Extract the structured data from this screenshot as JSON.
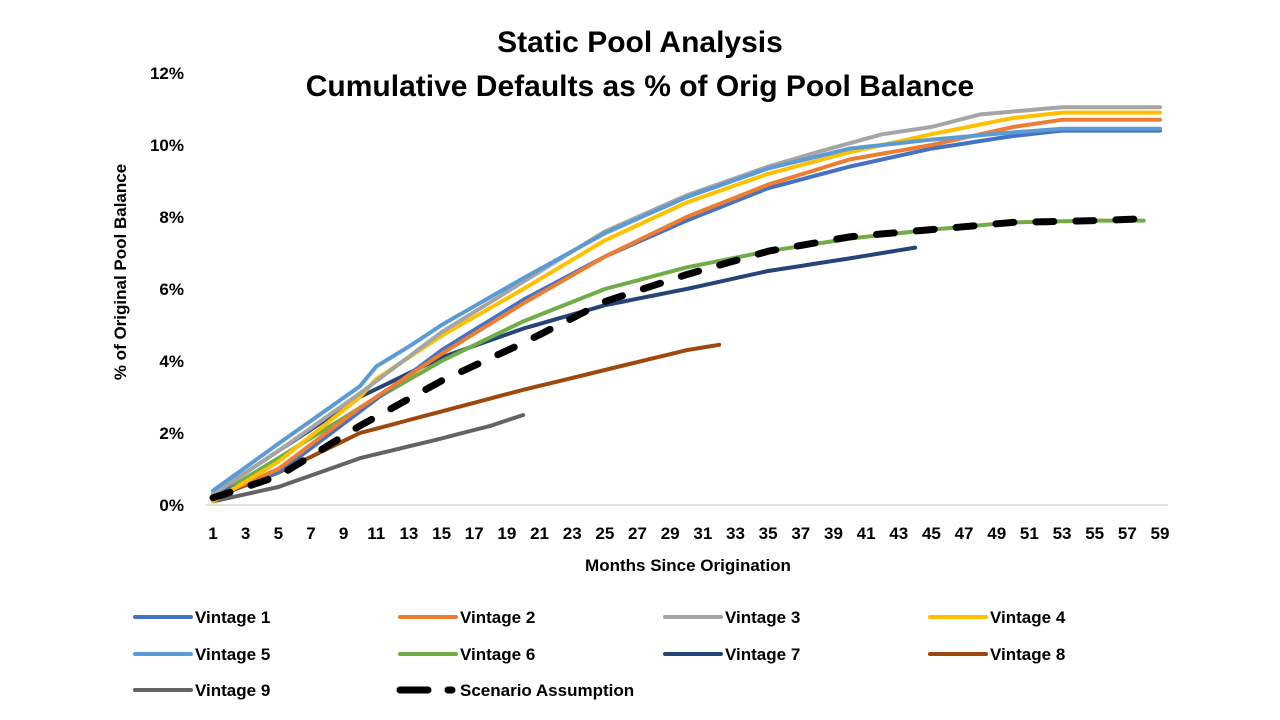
{
  "chart_data": {
    "type": "line",
    "title": [
      "Static Pool Analysis",
      "Cumulative Defaults as % of Orig Pool Balance"
    ],
    "xlabel": "Months Since Origination",
    "ylabel": "% of Original Pool Balance",
    "xlim": [
      1,
      59
    ],
    "ylim": [
      0,
      12
    ],
    "x_tick_labels": [
      "1",
      "3",
      "5",
      "7",
      "9",
      "11",
      "13",
      "15",
      "17",
      "19",
      "21",
      "23",
      "25",
      "27",
      "29",
      "31",
      "33",
      "35",
      "37",
      "39",
      "41",
      "43",
      "45",
      "47",
      "49",
      "51",
      "53",
      "55",
      "57",
      "59"
    ],
    "y_tick_labels": [
      "0%",
      "2%",
      "4%",
      "6%",
      "8%",
      "10%",
      "12%"
    ],
    "y_tick_values": [
      0,
      2,
      4,
      6,
      8,
      10,
      12
    ],
    "grid": false,
    "legend_position": "bottom",
    "series": [
      {
        "name": "Vintage 1",
        "color": "#4472C4",
        "dashed": false,
        "x": [
          1,
          5,
          10,
          15,
          20,
          25,
          30,
          35,
          40,
          45,
          50,
          53,
          59
        ],
        "y": [
          0.3,
          0.9,
          2.6,
          4.3,
          5.7,
          6.9,
          7.9,
          8.8,
          9.4,
          9.9,
          10.25,
          10.4,
          10.4
        ]
      },
      {
        "name": "Vintage 2",
        "color": "#ED7D31",
        "dashed": false,
        "x": [
          1,
          5,
          10,
          15,
          20,
          25,
          30,
          35,
          40,
          45,
          50,
          53,
          59
        ],
        "y": [
          0.2,
          1.0,
          2.7,
          4.2,
          5.6,
          6.9,
          8.0,
          8.9,
          9.6,
          10.0,
          10.5,
          10.7,
          10.7
        ]
      },
      {
        "name": "Vintage 3",
        "color": "#A5A5A5",
        "dashed": false,
        "x": [
          1,
          5,
          10,
          15,
          20,
          25,
          30,
          35,
          38,
          42,
          45,
          48,
          53,
          59
        ],
        "y": [
          0.3,
          1.5,
          3.1,
          4.8,
          6.2,
          7.6,
          8.6,
          9.4,
          9.8,
          10.3,
          10.5,
          10.85,
          11.05,
          11.05
        ]
      },
      {
        "name": "Vintage 4",
        "color": "#FFC000",
        "dashed": false,
        "x": [
          1,
          5,
          10,
          11,
          15,
          20,
          25,
          30,
          35,
          40,
          45,
          50,
          53,
          59
        ],
        "y": [
          0.1,
          1.2,
          3.0,
          3.5,
          4.7,
          6.0,
          7.35,
          8.4,
          9.2,
          9.8,
          10.3,
          10.75,
          10.9,
          10.9
        ]
      },
      {
        "name": "Vintage 5",
        "color": "#5B9BD5",
        "dashed": false,
        "x": [
          1,
          5,
          10,
          11,
          13,
          15,
          20,
          25,
          30,
          35,
          40,
          45,
          50,
          53,
          59
        ],
        "y": [
          0.4,
          1.7,
          3.3,
          3.85,
          4.4,
          5.0,
          6.3,
          7.55,
          8.55,
          9.35,
          9.9,
          10.15,
          10.35,
          10.45,
          10.45
        ]
      },
      {
        "name": "Vintage 6",
        "color": "#70AD47",
        "dashed": false,
        "x": [
          1,
          5,
          10,
          15,
          20,
          25,
          30,
          35,
          40,
          45,
          50,
          55,
          58
        ],
        "y": [
          0.2,
          1.3,
          2.7,
          4.0,
          5.1,
          6.0,
          6.6,
          7.05,
          7.4,
          7.65,
          7.85,
          7.9,
          7.9
        ]
      },
      {
        "name": "Vintage 7",
        "color": "#264478",
        "dashed": false,
        "x": [
          1,
          5,
          10,
          15,
          20,
          25,
          30,
          35,
          40,
          44
        ],
        "y": [
          0.3,
          1.5,
          3.0,
          4.1,
          4.9,
          5.55,
          6.0,
          6.5,
          6.85,
          7.15
        ]
      },
      {
        "name": "Vintage 8",
        "color": "#9E480E",
        "dashed": false,
        "x": [
          1,
          5,
          10,
          15,
          20,
          25,
          30,
          32
        ],
        "y": [
          0.2,
          0.9,
          2.0,
          2.6,
          3.2,
          3.75,
          4.3,
          4.45
        ]
      },
      {
        "name": "Vintage 9",
        "color": "#636363",
        "dashed": false,
        "x": [
          1,
          5,
          10,
          15,
          18,
          20
        ],
        "y": [
          0.1,
          0.5,
          1.3,
          1.85,
          2.2,
          2.5
        ]
      },
      {
        "name": "Scenario Assumption",
        "color": "#000000",
        "dashed": true,
        "x": [
          1,
          5,
          10,
          15,
          20,
          25,
          30,
          35,
          40,
          45,
          50,
          55,
          58
        ],
        "y": [
          0.2,
          0.8,
          2.2,
          3.45,
          4.5,
          5.65,
          6.4,
          7.05,
          7.45,
          7.65,
          7.85,
          7.9,
          7.95
        ]
      }
    ]
  }
}
